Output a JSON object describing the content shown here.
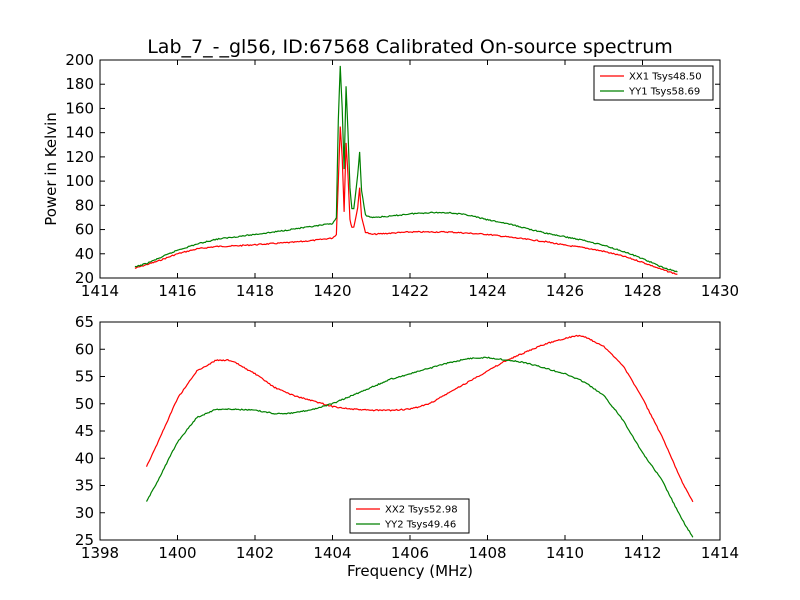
{
  "chart_data": [
    {
      "type": "line",
      "title": "Lab_7_-_gl56, ID:67568 Calibrated On-source spectrum",
      "xlabel": "",
      "ylabel": "Power in Kelvin",
      "xlim": [
        1414,
        1430
      ],
      "ylim": [
        20,
        200
      ],
      "xticks": [
        1414,
        1416,
        1418,
        1420,
        1422,
        1424,
        1426,
        1428,
        1430
      ],
      "yticks": [
        20,
        40,
        60,
        80,
        100,
        120,
        140,
        160,
        180,
        200
      ],
      "grid": false,
      "legend_position": "top-right",
      "series": [
        {
          "name": "XX1 Tsys48.50",
          "color": "#ff0000",
          "x": [
            1414.9,
            1415.2,
            1415.5,
            1416.0,
            1416.5,
            1417.0,
            1417.5,
            1418.0,
            1418.5,
            1419.0,
            1419.5,
            1420.0,
            1420.1,
            1420.15,
            1420.2,
            1420.25,
            1420.3,
            1420.35,
            1420.4,
            1420.45,
            1420.5,
            1420.55,
            1420.65,
            1420.7,
            1420.75,
            1420.85,
            1421.0,
            1421.5,
            1422.0,
            1422.5,
            1423.0,
            1423.5,
            1424.0,
            1424.5,
            1425.0,
            1425.5,
            1426.0,
            1426.5,
            1427.0,
            1427.5,
            1428.0,
            1428.5,
            1428.9
          ],
          "y": [
            28,
            31,
            34,
            40,
            44,
            46,
            46.5,
            47.5,
            48.5,
            49.5,
            51,
            53,
            56,
            100,
            145,
            120,
            75,
            132,
            105,
            68,
            62,
            62,
            78,
            95,
            70,
            58,
            56,
            57,
            58,
            58,
            58,
            57,
            56,
            54,
            52,
            50,
            47,
            45,
            42,
            38,
            33,
            27,
            23
          ]
        },
        {
          "name": "YY1 Tsys58.69",
          "color": "#008000",
          "x": [
            1414.9,
            1415.2,
            1415.5,
            1416.0,
            1416.5,
            1417.0,
            1417.5,
            1418.0,
            1418.5,
            1419.0,
            1419.5,
            1420.0,
            1420.1,
            1420.15,
            1420.2,
            1420.25,
            1420.3,
            1420.35,
            1420.4,
            1420.45,
            1420.5,
            1420.55,
            1420.65,
            1420.7,
            1420.75,
            1420.85,
            1421.0,
            1421.5,
            1422.0,
            1422.5,
            1423.0,
            1423.5,
            1424.0,
            1424.5,
            1425.0,
            1425.5,
            1426.0,
            1426.5,
            1427.0,
            1427.5,
            1428.0,
            1428.5,
            1428.9
          ],
          "y": [
            29,
            32,
            36,
            43,
            48,
            52,
            54,
            56,
            58,
            60.5,
            62.5,
            65,
            70,
            150,
            195,
            160,
            110,
            178,
            140,
            95,
            77,
            77,
            105,
            124,
            92,
            72,
            70,
            71,
            73,
            74,
            74,
            72,
            68,
            65,
            61,
            57,
            54,
            51,
            47,
            42,
            36,
            29,
            25
          ]
        }
      ]
    },
    {
      "type": "line",
      "title": "",
      "xlabel": "Frequency (MHz)",
      "ylabel": "",
      "xlim": [
        1398,
        1414
      ],
      "ylim": [
        25,
        65
      ],
      "xticks": [
        1398,
        1400,
        1402,
        1404,
        1406,
        1408,
        1410,
        1412,
        1414
      ],
      "yticks": [
        25,
        30,
        35,
        40,
        45,
        50,
        55,
        60,
        65
      ],
      "grid": false,
      "legend_position": "lower-center",
      "series": [
        {
          "name": "XX2 Tsys52.98",
          "color": "#ff0000",
          "x": [
            1399.2,
            1399.5,
            1400.0,
            1400.5,
            1401.0,
            1401.3,
            1401.5,
            1402.0,
            1402.5,
            1403.0,
            1403.5,
            1404.0,
            1404.5,
            1405.0,
            1405.5,
            1406.0,
            1406.5,
            1407.0,
            1407.5,
            1408.0,
            1408.5,
            1409.0,
            1409.5,
            1410.0,
            1410.3,
            1410.5,
            1411.0,
            1411.5,
            1412.0,
            1412.5,
            1413.0,
            1413.3
          ],
          "y": [
            38.5,
            43,
            51,
            56,
            58,
            58,
            57.5,
            55.5,
            53,
            51.5,
            50.5,
            49.5,
            49,
            48.8,
            48.8,
            49,
            50,
            52,
            54,
            56,
            58,
            59.5,
            61,
            62,
            62.5,
            62.3,
            60.5,
            57,
            51,
            44,
            36,
            32
          ]
        },
        {
          "name": "YY2 Tsys49.46",
          "color": "#008000",
          "x": [
            1399.2,
            1399.5,
            1400.0,
            1400.5,
            1401.0,
            1401.5,
            1402.0,
            1402.5,
            1403.0,
            1403.5,
            1404.0,
            1404.5,
            1405.0,
            1405.5,
            1406.0,
            1406.5,
            1407.0,
            1407.5,
            1408.0,
            1408.5,
            1409.0,
            1409.5,
            1410.0,
            1410.5,
            1411.0,
            1411.5,
            1412.0,
            1412.5,
            1413.0,
            1413.3
          ],
          "y": [
            32,
            36,
            43,
            47.5,
            49,
            49,
            48.8,
            48.2,
            48.3,
            49,
            50,
            51.5,
            53,
            54.5,
            55.5,
            56.5,
            57.5,
            58.3,
            58.5,
            58,
            57.5,
            56.5,
            55.5,
            54,
            51.5,
            47,
            41,
            36,
            29,
            25.5
          ]
        }
      ]
    }
  ]
}
